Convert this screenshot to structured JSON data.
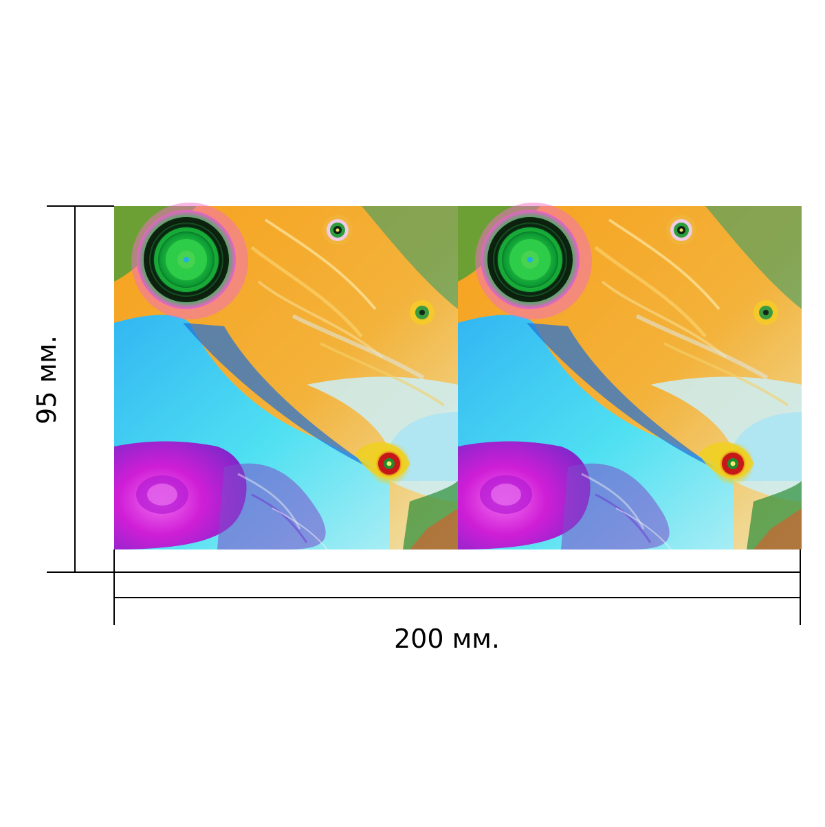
{
  "dimensions": {
    "height_label": "95 мм.",
    "width_label": "200 мм."
  },
  "artwork": {
    "panels": [
      "fractal-panel-left",
      "fractal-panel-right"
    ],
    "colors": {
      "orange": "#f5a31f",
      "yellow": "#f8d23a",
      "cyan": "#3fd0f3",
      "magenta": "#d323d6",
      "green": "#1ea33a",
      "red": "#d61b1b"
    }
  }
}
